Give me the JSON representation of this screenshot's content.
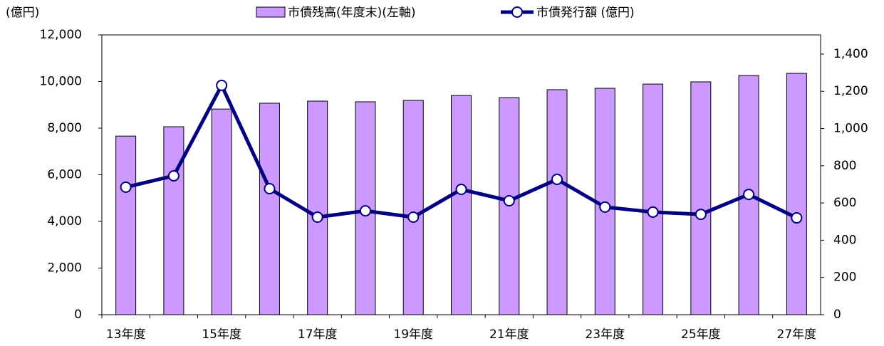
{
  "chart_data": {
    "type": "bar-line",
    "y_label": "(億円)",
    "categories": [
      "13年度",
      null,
      "15年度",
      null,
      "17年度",
      null,
      "19年度",
      null,
      "21年度",
      null,
      "23年度",
      null,
      "25年度",
      null,
      "27年度"
    ],
    "series": [
      {
        "name": "市債残高(年度末)(左軸)",
        "type": "bar",
        "color": "#cc99ff",
        "values": [
          7660,
          8060,
          8820,
          9070,
          9160,
          9130,
          9190,
          9400,
          9310,
          9650,
          9710,
          9890,
          9985,
          10260,
          10350
        ]
      },
      {
        "name": "市債発行額 (億円)",
        "type": "line",
        "axis": "y2",
        "color": "#000080",
        "values": [
          685,
          746,
          1232,
          677,
          524,
          558,
          524,
          673,
          612,
          727,
          578,
          551,
          539,
          646,
          520
        ]
      }
    ],
    "ylim": [
      0,
      12000
    ],
    "yticks": [
      0,
      {
        "value": 2000,
        "label": "2,000"
      },
      {
        "value": 4000,
        "label": "4,000"
      },
      {
        "value": 6000,
        "label": "6,000"
      },
      {
        "value": 8000,
        "label": "8,000"
      },
      {
        "value": 10000,
        "label": "10,000"
      },
      {
        "value": 12000,
        "label": "12,000"
      }
    ],
    "y2lim": [
      0,
      1503
    ],
    "y2ticks": [
      0,
      200,
      400,
      600,
      800,
      {
        "value": 1000,
        "label": "1,000"
      },
      {
        "value": 1200,
        "label": "1,200"
      },
      {
        "value": 1400,
        "label": "1,400"
      }
    ]
  }
}
